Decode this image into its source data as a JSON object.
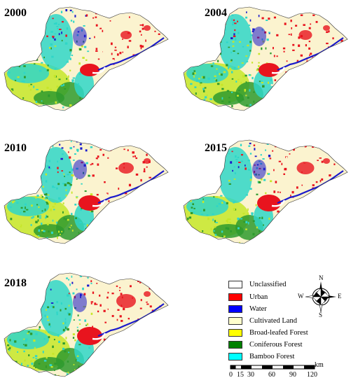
{
  "panels": [
    {
      "year": "2000"
    },
    {
      "year": "2004"
    },
    {
      "year": "2010"
    },
    {
      "year": "2015"
    },
    {
      "year": "2018"
    }
  ],
  "legend": {
    "items": [
      {
        "label": "Unclassified",
        "color": "#ffffff"
      },
      {
        "label": "Urban",
        "color": "#ff0000"
      },
      {
        "label": "Water",
        "color": "#0000ff"
      },
      {
        "label": "Cultivated Land",
        "color": "#ffffcc"
      },
      {
        "label": "Broad-leafed Forest",
        "color": "#ffff00"
      },
      {
        "label": "Coniferous Forest",
        "color": "#008000"
      },
      {
        "label": "Bamboo Forest",
        "color": "#00ffff"
      }
    ]
  },
  "compass": {
    "n": "N",
    "s": "S",
    "e": "E",
    "w": "W"
  },
  "scale": {
    "unit": "km",
    "ticks": [
      "0",
      "15",
      "30",
      "60",
      "90",
      "120"
    ]
  },
  "colors": {
    "cultivated": "#fbf3cf",
    "urban": "#e8141e",
    "water": "#1a1acc",
    "bamboo": "#2fd6c8",
    "broadleaf": "#c6e62a",
    "coniferous": "#2e9a2e"
  }
}
